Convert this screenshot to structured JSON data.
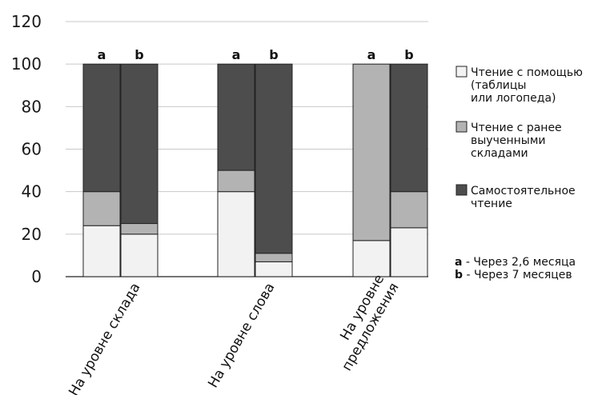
{
  "chart_data": {
    "type": "bar",
    "stacked": true,
    "ylim": [
      0,
      120
    ],
    "yticks": [
      0,
      20,
      40,
      60,
      80,
      100,
      120
    ],
    "grid": true,
    "legend_position": "right",
    "categories": [
      {
        "label_lines": [
          "На уровне склада"
        ]
      },
      {
        "label_lines": [
          "На уровне слова"
        ]
      },
      {
        "label_lines": [
          "На уровне",
          "предложения"
        ]
      }
    ],
    "bar_tags": [
      "a",
      "b"
    ],
    "series": [
      {
        "name_lines": [
          "Чтение с помощью",
          "(таблицы",
          "или логопеда)"
        ],
        "color": "#f2f2f2",
        "values": [
          [
            24,
            20
          ],
          [
            40,
            7
          ],
          [
            17,
            23
          ]
        ]
      },
      {
        "name_lines": [
          "Чтение с ранее",
          "выученными",
          "складами"
        ],
        "color": "#b3b3b3",
        "values": [
          [
            16,
            5
          ],
          [
            10,
            4
          ],
          [
            83,
            17
          ]
        ]
      },
      {
        "name_lines": [
          "Самостоятельное",
          "чтение"
        ],
        "color": "#4d4d4d",
        "values": [
          [
            60,
            75
          ],
          [
            50,
            89
          ],
          [
            0,
            60
          ]
        ]
      }
    ],
    "notes": [
      {
        "key": "a",
        "text": " - Через 2,6 месяца"
      },
      {
        "key": "b",
        "text": " - Через 7 месяцев"
      }
    ]
  }
}
